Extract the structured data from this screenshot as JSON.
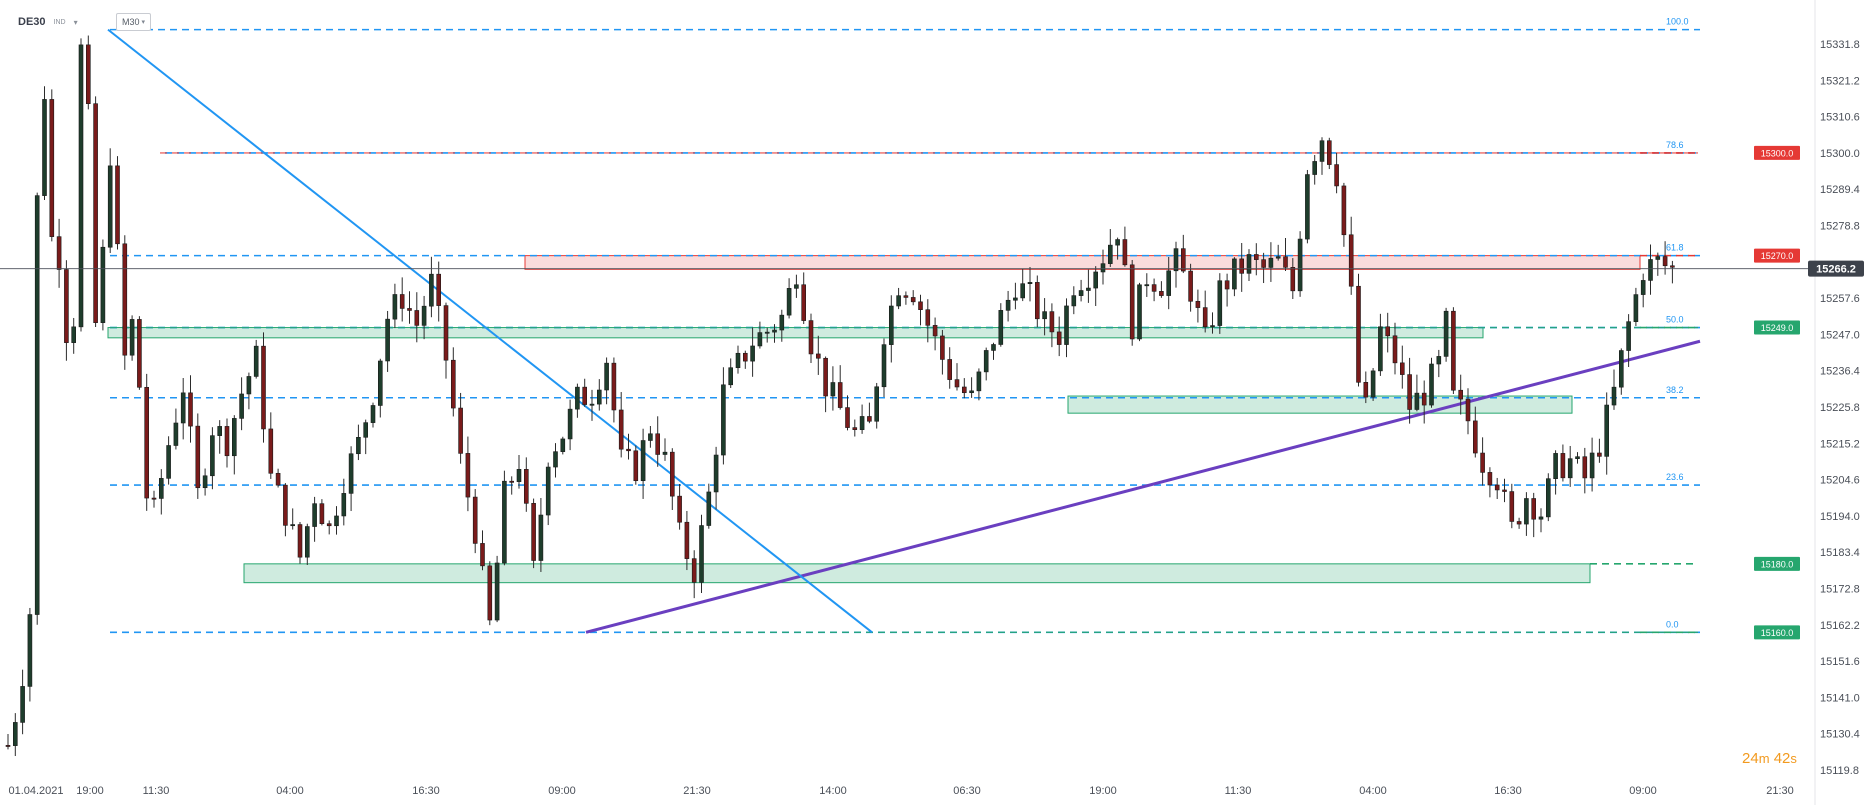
{
  "header": {
    "symbol": "DE30",
    "instrument_type": "IND",
    "timeframe": "M30"
  },
  "timer": {
    "minutes": "24",
    "minutes_unit": "m",
    "seconds": "42",
    "seconds_unit": "s"
  },
  "colors": {
    "up_candle": "#1e3d2c",
    "down_candle": "#7a1b1b",
    "fib_line": "#2196f3",
    "resistance": "#e53935",
    "support": "#26a66e",
    "trendline_purple": "#6a3fc0",
    "trendline_blue": "#2196f3",
    "timer": "#f29a1f"
  },
  "chart_data": {
    "type": "candlestick",
    "title": "",
    "xlabel": "",
    "ylabel": "",
    "ylim": [
      15115.0,
      15346.0
    ],
    "grid": false,
    "y_ticks": [
      "15331.8",
      "15321.2",
      "15310.6",
      "15300.0",
      "15289.4",
      "15278.8",
      "15257.6",
      "15247.0",
      "15236.4",
      "15225.8",
      "15215.2",
      "15204.6",
      "15194.0",
      "15183.4",
      "15172.8",
      "15162.2",
      "15151.6",
      "15141.0",
      "15130.4",
      "15119.8"
    ],
    "x_tick_labels": [
      "01.04.2021",
      "19:00",
      "11:30",
      "04:00",
      "16:30",
      "09:00",
      "21:30",
      "14:00",
      "06:30",
      "19:00",
      "11:30",
      "04:00",
      "16:30",
      "09:00",
      "21:30"
    ],
    "current_price": "15266.2",
    "fibonacci_levels": [
      {
        "label": "100.0",
        "price": 15336.0
      },
      {
        "label": "78.6",
        "price": 15300.0
      },
      {
        "label": "61.8",
        "price": 15270.0
      },
      {
        "label": "50.0",
        "price": 15249.0
      },
      {
        "label": "38.2",
        "price": 15228.5
      },
      {
        "label": "23.6",
        "price": 15203.0
      },
      {
        "label": "0.0",
        "price": 15160.0
      }
    ],
    "price_tags": [
      {
        "label": "15300.0",
        "price": 15300.0,
        "kind": "resistance"
      },
      {
        "label": "15270.0",
        "price": 15270.0,
        "kind": "resistance"
      },
      {
        "label": "15249.0",
        "price": 15249.0,
        "kind": "support"
      },
      {
        "label": "15180.0",
        "price": 15180.0,
        "kind": "support"
      },
      {
        "label": "15160.0",
        "price": 15160.0,
        "kind": "support"
      }
    ],
    "zones": [
      {
        "kind": "resistance",
        "high": 15270.0,
        "low": 15266.0
      },
      {
        "kind": "support",
        "high": 15249.0,
        "low": 15246.0
      },
      {
        "kind": "support",
        "high": 15229.0,
        "low": 15224.0
      },
      {
        "kind": "support",
        "high": 15180.0,
        "low": 15174.5
      }
    ],
    "close_path": [
      [
        0,
        15127
      ],
      [
        1,
        15136
      ],
      [
        2,
        15148
      ],
      [
        3,
        15166
      ],
      [
        3.4,
        15210
      ],
      [
        3.6,
        15275
      ],
      [
        4.5,
        15300
      ],
      [
        5,
        15318
      ],
      [
        6,
        15275
      ],
      [
        7,
        15270
      ],
      [
        8,
        15248
      ],
      [
        9,
        15252
      ],
      [
        10,
        15330
      ],
      [
        11,
        15310
      ],
      [
        12,
        15250
      ],
      [
        13,
        15270
      ],
      [
        14,
        15300
      ],
      [
        15,
        15270
      ],
      [
        16,
        15240
      ],
      [
        17,
        15250
      ],
      [
        18,
        15232
      ],
      [
        19,
        15200
      ],
      [
        20,
        15195
      ],
      [
        22,
        15215
      ],
      [
        24,
        15232
      ],
      [
        26,
        15200
      ],
      [
        28,
        15220
      ],
      [
        30,
        15216
      ],
      [
        32,
        15230
      ],
      [
        34,
        15240
      ],
      [
        36,
        15205
      ],
      [
        38,
        15195
      ],
      [
        40,
        15182
      ],
      [
        42,
        15200
      ],
      [
        44,
        15190
      ],
      [
        46,
        15205
      ],
      [
        48,
        15215
      ],
      [
        50,
        15230
      ],
      [
        52,
        15252
      ],
      [
        54,
        15258
      ],
      [
        56,
        15250
      ],
      [
        58,
        15262
      ],
      [
        60,
        15240
      ],
      [
        62,
        15210
      ],
      [
        64,
        15190
      ],
      [
        65,
        15175
      ],
      [
        66,
        15162
      ],
      [
        67,
        15180
      ],
      [
        68,
        15200
      ],
      [
        70,
        15210
      ],
      [
        72,
        15178
      ],
      [
        74,
        15212
      ],
      [
        76,
        15218
      ],
      [
        78,
        15228
      ],
      [
        80,
        15230
      ],
      [
        82,
        15240
      ],
      [
        84,
        15210
      ],
      [
        86,
        15208
      ],
      [
        88,
        15220
      ],
      [
        90,
        15210
      ],
      [
        92,
        15188
      ],
      [
        94,
        15178
      ],
      [
        96,
        15200
      ],
      [
        98,
        15230
      ],
      [
        100,
        15238
      ],
      [
        102,
        15245
      ],
      [
        104,
        15248
      ],
      [
        106,
        15252
      ],
      [
        108,
        15266
      ],
      [
        110,
        15245
      ],
      [
        112,
        15232
      ],
      [
        114,
        15225
      ],
      [
        116,
        15218
      ],
      [
        118,
        15220
      ],
      [
        120,
        15248
      ],
      [
        122,
        15262
      ],
      [
        124,
        15260
      ],
      [
        126,
        15250
      ],
      [
        128,
        15240
      ],
      [
        130,
        15232
      ],
      [
        132,
        15228
      ],
      [
        134,
        15240
      ],
      [
        136,
        15252
      ],
      [
        138,
        15262
      ],
      [
        140,
        15258
      ],
      [
        142,
        15250
      ],
      [
        144,
        15247
      ],
      [
        146,
        15262
      ],
      [
        148,
        15265
      ],
      [
        150,
        15270
      ],
      [
        152,
        15278
      ],
      [
        154,
        15250
      ],
      [
        156,
        15264
      ],
      [
        158,
        15262
      ],
      [
        160,
        15268
      ],
      [
        162,
        15260
      ],
      [
        164,
        15245
      ],
      [
        166,
        15260
      ],
      [
        168,
        15265
      ],
      [
        170,
        15268
      ],
      [
        172,
        15266
      ],
      [
        174,
        15268
      ],
      [
        176,
        15260
      ],
      [
        178,
        15296
      ],
      [
        180,
        15305
      ],
      [
        182,
        15294
      ],
      [
        184,
        15258
      ],
      [
        185,
        15233
      ],
      [
        186,
        15225
      ],
      [
        188,
        15248
      ],
      [
        190,
        15240
      ],
      [
        192,
        15226
      ],
      [
        194,
        15230
      ],
      [
        196,
        15238
      ],
      [
        197,
        15250
      ],
      [
        198,
        15228
      ],
      [
        200,
        15222
      ],
      [
        202,
        15210
      ],
      [
        204,
        15205
      ],
      [
        206,
        15190
      ],
      [
        208,
        15200
      ],
      [
        210,
        15195
      ],
      [
        212,
        15208
      ],
      [
        214,
        15210
      ],
      [
        216,
        15205
      ],
      [
        218,
        15215
      ],
      [
        220,
        15230
      ],
      [
        222,
        15250
      ],
      [
        224,
        15266
      ],
      [
        226,
        15268
      ],
      [
        228,
        15266
      ]
    ],
    "annotations": [
      {
        "type": "trendline",
        "color": "purple",
        "from_price": 15160.0,
        "to_price": 15245.0
      },
      {
        "type": "trendline",
        "color": "blue",
        "from_price": 15336.0,
        "to_price": 15160.0
      }
    ]
  }
}
